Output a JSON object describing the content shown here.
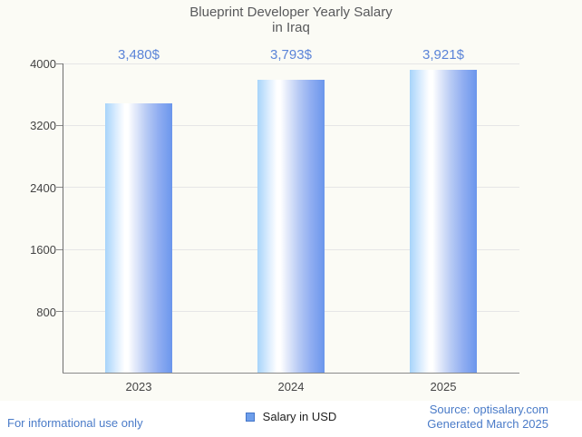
{
  "title": {
    "line1": "Blueprint Developer Yearly Salary",
    "line2": "in Iraq"
  },
  "chart_data": {
    "type": "bar",
    "title": "Blueprint Developer Yearly Salary in Iraq",
    "categories": [
      "2023",
      "2024",
      "2025"
    ],
    "series": [
      {
        "name": "Salary in USD",
        "values": [
          3480,
          3793,
          3921
        ]
      }
    ],
    "value_labels": [
      "3,480$",
      "3,793$",
      "3,921$"
    ],
    "xlabel": "",
    "ylabel": "",
    "ylim": [
      0,
      4000
    ],
    "yticks": [
      800,
      1600,
      2400,
      3200,
      4000
    ],
    "grid": true,
    "legend_position": "bottom"
  },
  "legend": {
    "label": "Salary in USD",
    "swatch_color": "#6d9eeb"
  },
  "footer": {
    "left": "For informational use only",
    "source": "Source: optisalary.com",
    "generated": "Generated March 2025"
  },
  "colors": {
    "background": "#fbfbf5",
    "bar_light": "#a7d4fa",
    "bar_base": "#6b96ec",
    "value_label": "#5b84d8",
    "footer_link": "#4a7bc8",
    "axis": "#6e6e6e",
    "gridline": "#e6e6e6",
    "tick_text": "#444444",
    "title_text": "#58595b"
  }
}
